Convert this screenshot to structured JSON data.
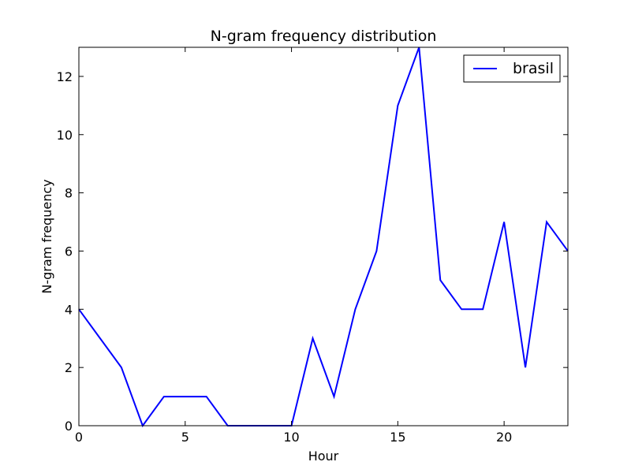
{
  "chart_data": {
    "type": "line",
    "title": "N-gram frequency distribution",
    "xlabel": "Hour",
    "ylabel": "N-gram frequency",
    "xlim": [
      0,
      23
    ],
    "ylim": [
      0,
      13
    ],
    "xticks": [
      0,
      5,
      10,
      15,
      20
    ],
    "yticks": [
      0,
      2,
      4,
      6,
      8,
      10,
      12
    ],
    "grid": false,
    "legend_position": "top-right",
    "series": [
      {
        "name": "brasil",
        "color": "#0000ff",
        "x": [
          0,
          1,
          2,
          3,
          4,
          5,
          6,
          7,
          8,
          9,
          10,
          11,
          12,
          13,
          14,
          15,
          16,
          17,
          18,
          19,
          20,
          21,
          22,
          23
        ],
        "y": [
          4,
          3,
          2,
          0,
          1,
          1,
          1,
          0,
          0,
          0,
          0,
          3,
          1,
          4,
          6,
          11,
          13,
          5,
          4,
          4,
          7,
          2,
          7,
          6
        ]
      }
    ]
  }
}
